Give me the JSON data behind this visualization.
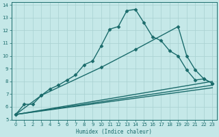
{
  "xlabel": "Humidex (Indice chaleur)",
  "ylabel": "",
  "xlim": [
    -0.5,
    23.5
  ],
  "ylim": [
    5,
    14.2
  ],
  "yticks": [
    5,
    6,
    7,
    8,
    9,
    10,
    11,
    12,
    13,
    14
  ],
  "xticks": [
    0,
    1,
    2,
    3,
    4,
    5,
    6,
    7,
    8,
    9,
    10,
    11,
    12,
    13,
    14,
    15,
    16,
    17,
    18,
    19,
    20,
    21,
    22,
    23
  ],
  "background_color": "#c5e8e8",
  "grid_color": "#a8d0d0",
  "line_color": "#1a6b6b",
  "series": [
    {
      "x": [
        0,
        1,
        2,
        3,
        4,
        5,
        6,
        7,
        8,
        9,
        10,
        11,
        12,
        13,
        14,
        15,
        16,
        17,
        18,
        19,
        20,
        21,
        22,
        23
      ],
      "y": [
        5.4,
        6.2,
        6.2,
        6.9,
        7.4,
        7.7,
        8.1,
        8.5,
        9.3,
        9.6,
        10.8,
        12.1,
        12.3,
        13.55,
        13.65,
        12.6,
        11.5,
        11.2,
        10.4,
        10.0,
        8.9,
        8.1,
        8.2,
        7.85
      ],
      "marker": "D",
      "markersize": 2.5,
      "linewidth": 1.0,
      "has_marker": true
    },
    {
      "x": [
        0,
        3,
        10,
        14,
        19,
        20,
        21,
        22,
        23
      ],
      "y": [
        5.4,
        6.9,
        9.1,
        10.5,
        12.3,
        10.0,
        8.9,
        8.2,
        7.85
      ],
      "marker": "D",
      "markersize": 2.5,
      "linewidth": 1.0,
      "has_marker": true
    },
    {
      "x": [
        0,
        23
      ],
      "y": [
        5.4,
        8.0
      ],
      "marker": null,
      "markersize": 0,
      "linewidth": 1.0,
      "has_marker": false
    },
    {
      "x": [
        0,
        23
      ],
      "y": [
        5.4,
        7.7
      ],
      "marker": null,
      "markersize": 0,
      "linewidth": 1.0,
      "has_marker": false
    },
    {
      "x": [
        0,
        23
      ],
      "y": [
        5.4,
        7.5
      ],
      "marker": null,
      "markersize": 0,
      "linewidth": 1.0,
      "has_marker": false
    }
  ]
}
